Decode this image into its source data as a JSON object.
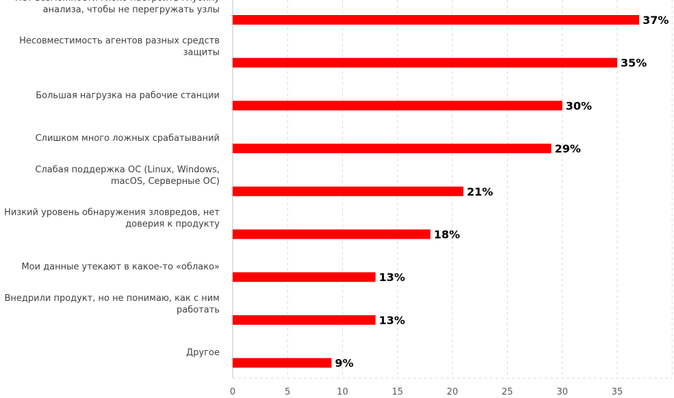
{
  "chart_data": {
    "type": "bar",
    "orientation": "horizontal",
    "title": "",
    "xlabel": "",
    "ylabel": "",
    "categories": [
      [
        "Нет возможности гибко настроить глубину",
        "анализа, чтобы не перегружать узлы"
      ],
      [
        "Несовместимость агентов разных средств",
        "защиты"
      ],
      [
        "Большая нагрузка на рабочие станции"
      ],
      [
        "Слишком много ложных срабатываний"
      ],
      [
        "Слабая поддержка ОС (Linux, Windows,",
        "macOS, Серверные ОС)"
      ],
      [
        "Низкий уровень обнаружения зловредов, нет",
        "доверия к продукту"
      ],
      [
        "Мои данные утекают в какое-то «облако»"
      ],
      [
        "Внедрили продукт, но не понимаю, как с ним",
        "работать"
      ],
      [
        "Другое"
      ]
    ],
    "values": [
      37,
      35,
      30,
      29,
      21,
      18,
      13,
      13,
      9
    ],
    "data_labels": [
      "37%",
      "35%",
      "30%",
      "29%",
      "21%",
      "18%",
      "13%",
      "13%",
      "9%"
    ],
    "xlim": [
      0,
      40
    ],
    "x_ticks": [
      0,
      5,
      10,
      15,
      20,
      25,
      30,
      35
    ],
    "grid": true,
    "bar_color": "#ff0000"
  }
}
